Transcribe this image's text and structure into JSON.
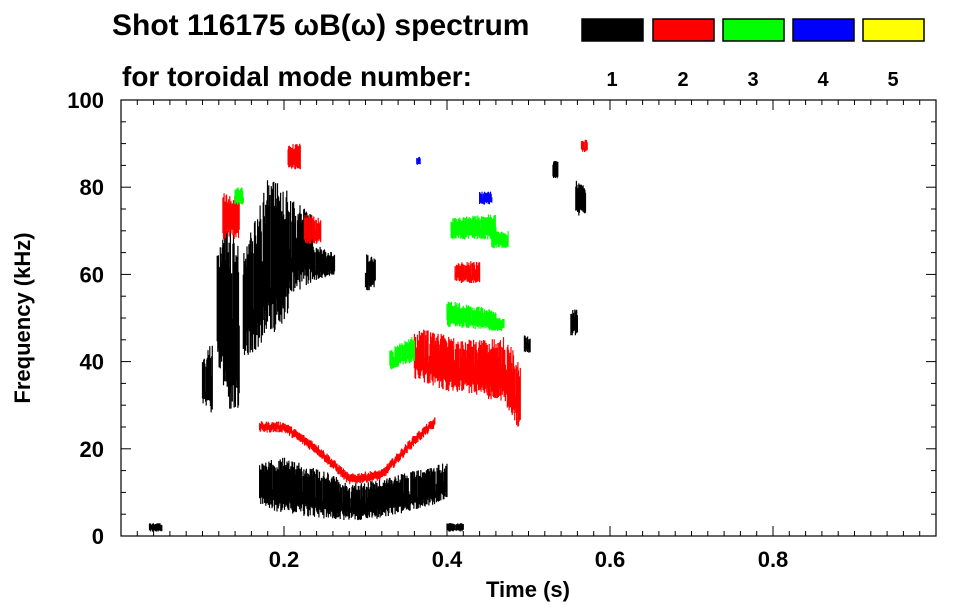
{
  "chart_data": {
    "type": "scatter",
    "title": "Shot 116175 ωB(ω) spectrum",
    "subtitle": "for toroidal mode number:",
    "xlabel": "Time (s)",
    "ylabel": "Frequency (kHz)",
    "xlim": [
      0.0,
      1.0
    ],
    "ylim": [
      0,
      100
    ],
    "x_ticks": [
      0.2,
      0.4,
      0.6,
      0.8
    ],
    "x_tick_labels": [
      "0.2",
      "0.4",
      "0.6",
      "0.8"
    ],
    "y_ticks": [
      0,
      20,
      40,
      60,
      80,
      100
    ],
    "y_tick_labels": [
      "0",
      "20",
      "40",
      "60",
      "80",
      "100"
    ],
    "legend": [
      {
        "label": "1",
        "color": "#000000"
      },
      {
        "label": "2",
        "color": "#ff0000"
      },
      {
        "label": "3",
        "color": "#00ff00"
      },
      {
        "label": "4",
        "color": "#0000ff"
      },
      {
        "label": "5",
        "color": "#ffff00"
      }
    ],
    "series": [
      {
        "name": "n=1",
        "mode": "1",
        "color": "#000000",
        "regions": [
          {
            "t": [
              0.17,
              0.4
            ],
            "f_lower": [
              [
                0.17,
                7
              ],
              [
                0.2,
                5
              ],
              [
                0.25,
                4
              ],
              [
                0.28,
                3.5
              ],
              [
                0.32,
                4
              ],
              [
                0.36,
                6
              ],
              [
                0.4,
                8
              ]
            ],
            "f_upper": [
              [
                0.17,
                17
              ],
              [
                0.2,
                18
              ],
              [
                0.25,
                15
              ],
              [
                0.28,
                12
              ],
              [
                0.32,
                13
              ],
              [
                0.36,
                15
              ],
              [
                0.4,
                17
              ]
            ]
          },
          {
            "t": [
              0.1,
              0.112
            ],
            "f_lower": [
              [
                0.1,
                30
              ],
              [
                0.112,
                28
              ]
            ],
            "f_upper": [
              [
                0.1,
                40
              ],
              [
                0.112,
                45
              ]
            ]
          },
          {
            "t": [
              0.118,
              0.145
            ],
            "f_lower": [
              [
                0.118,
                40
              ],
              [
                0.13,
                30
              ],
              [
                0.145,
                25
              ]
            ],
            "f_upper": [
              [
                0.118,
                68
              ],
              [
                0.13,
                72
              ],
              [
                0.145,
                68
              ]
            ]
          },
          {
            "t": [
              0.15,
              0.205
            ],
            "f_lower": [
              [
                0.15,
                40
              ],
              [
                0.18,
                45
              ],
              [
                0.205,
                50
              ]
            ],
            "f_upper": [
              [
                0.15,
                65
              ],
              [
                0.18,
                82
              ],
              [
                0.205,
                80
              ]
            ]
          },
          {
            "t": [
              0.205,
              0.235
            ],
            "f_lower": [
              [
                0.205,
                55
              ],
              [
                0.235,
                58
              ]
            ],
            "f_upper": [
              [
                0.205,
                78
              ],
              [
                0.235,
                75
              ]
            ]
          },
          {
            "t": [
              0.235,
              0.262
            ],
            "f_lower": [
              [
                0.235,
                58
              ],
              [
                0.262,
                60
              ]
            ],
            "f_upper": [
              [
                0.235,
                67
              ],
              [
                0.262,
                65
              ]
            ]
          },
          {
            "t": [
              0.3,
              0.312
            ],
            "f_lower": [
              [
                0.3,
                56
              ],
              [
                0.312,
                57
              ]
            ],
            "f_upper": [
              [
                0.3,
                65
              ],
              [
                0.312,
                64
              ]
            ]
          },
          {
            "t": [
              0.495,
              0.502
            ],
            "f_lower": [
              [
                0.495,
                42
              ],
              [
                0.502,
                42
              ]
            ],
            "f_upper": [
              [
                0.495,
                46
              ],
              [
                0.502,
                46
              ]
            ]
          },
          {
            "t": [
              0.53,
              0.536
            ],
            "f_lower": [
              [
                0.53,
                82
              ],
              [
                0.536,
                82
              ]
            ],
            "f_upper": [
              [
                0.53,
                86
              ],
              [
                0.536,
                86
              ]
            ]
          },
          {
            "t": [
              0.558,
              0.57
            ],
            "f_lower": [
              [
                0.558,
                73
              ],
              [
                0.57,
                74
              ]
            ],
            "f_upper": [
              [
                0.558,
                82
              ],
              [
                0.57,
                80
              ]
            ]
          },
          {
            "t": [
              0.552,
              0.56
            ],
            "f_lower": [
              [
                0.552,
                46
              ],
              [
                0.56,
                46
              ]
            ],
            "f_upper": [
              [
                0.552,
                52
              ],
              [
                0.56,
                52
              ]
            ]
          },
          {
            "t": [
              0.4,
              0.42
            ],
            "f_lower": [
              [
                0.4,
                1
              ],
              [
                0.42,
                1
              ]
            ],
            "f_upper": [
              [
                0.4,
                3
              ],
              [
                0.42,
                3
              ]
            ]
          },
          {
            "t": [
              0.035,
              0.05
            ],
            "f_lower": [
              [
                0.035,
                1
              ],
              [
                0.05,
                1
              ]
            ],
            "f_upper": [
              [
                0.035,
                3
              ],
              [
                0.05,
                3
              ]
            ]
          }
        ]
      },
      {
        "name": "n=2",
        "mode": "2",
        "color": "#ff0000",
        "regions": [
          {
            "t": [
              0.17,
              0.385
            ],
            "band": [
              [
                0.17,
                25
              ],
              [
                0.2,
                25
              ],
              [
                0.24,
                20
              ],
              [
                0.28,
                13
              ],
              [
                0.32,
                14
              ],
              [
                0.36,
                22
              ],
              [
                0.385,
                26
              ]
            ],
            "width": 1.6
          },
          {
            "t": [
              0.36,
              0.49
            ],
            "f_lower": [
              [
                0.36,
                36
              ],
              [
                0.4,
                33
              ],
              [
                0.44,
                32
              ],
              [
                0.47,
                30
              ],
              [
                0.49,
                24
              ]
            ],
            "f_upper": [
              [
                0.36,
                48
              ],
              [
                0.4,
                46
              ],
              [
                0.44,
                45
              ],
              [
                0.47,
                46
              ],
              [
                0.49,
                40
              ]
            ]
          },
          {
            "t": [
              0.125,
              0.145
            ],
            "f_lower": [
              [
                0.125,
                68
              ],
              [
                0.145,
                68
              ]
            ],
            "f_upper": [
              [
                0.125,
                79
              ],
              [
                0.145,
                78
              ]
            ]
          },
          {
            "t": [
              0.225,
              0.245
            ],
            "f_lower": [
              [
                0.225,
                67
              ],
              [
                0.245,
                67
              ]
            ],
            "f_upper": [
              [
                0.225,
                74
              ],
              [
                0.245,
                73
              ]
            ]
          },
          {
            "t": [
              0.205,
              0.22
            ],
            "f_lower": [
              [
                0.205,
                84
              ],
              [
                0.22,
                84
              ]
            ],
            "f_upper": [
              [
                0.205,
                90
              ],
              [
                0.22,
                90
              ]
            ]
          },
          {
            "t": [
              0.41,
              0.44
            ],
            "f_lower": [
              [
                0.41,
                58
              ],
              [
                0.44,
                58
              ]
            ],
            "f_upper": [
              [
                0.41,
                63
              ],
              [
                0.44,
                63
              ]
            ]
          },
          {
            "t": [
              0.565,
              0.572
            ],
            "f_lower": [
              [
                0.565,
                88
              ],
              [
                0.572,
                88
              ]
            ],
            "f_upper": [
              [
                0.565,
                91
              ],
              [
                0.572,
                91
              ]
            ]
          }
        ]
      },
      {
        "name": "n=3",
        "mode": "3",
        "color": "#00ff00",
        "regions": [
          {
            "t": [
              0.405,
              0.46
            ],
            "f_lower": [
              [
                0.405,
                68
              ],
              [
                0.46,
                68
              ]
            ],
            "f_upper": [
              [
                0.405,
                73
              ],
              [
                0.46,
                74
              ]
            ]
          },
          {
            "t": [
              0.455,
              0.475
            ],
            "f_lower": [
              [
                0.455,
                66
              ],
              [
                0.475,
                66
              ]
            ],
            "f_upper": [
              [
                0.455,
                70
              ],
              [
                0.475,
                70
              ]
            ]
          },
          {
            "t": [
              0.4,
              0.46
            ],
            "f_lower": [
              [
                0.4,
                48
              ],
              [
                0.46,
                47
              ]
            ],
            "f_upper": [
              [
                0.4,
                54
              ],
              [
                0.46,
                52
              ]
            ]
          },
          {
            "t": [
              0.33,
              0.36
            ],
            "f_lower": [
              [
                0.33,
                38
              ],
              [
                0.36,
                40
              ]
            ],
            "f_upper": [
              [
                0.33,
                43
              ],
              [
                0.36,
                46
              ]
            ]
          },
          {
            "t": [
              0.14,
              0.15
            ],
            "f_lower": [
              [
                0.14,
                76
              ],
              [
                0.15,
                76
              ]
            ],
            "f_upper": [
              [
                0.14,
                80
              ],
              [
                0.15,
                80
              ]
            ]
          },
          {
            "t": [
              0.455,
              0.47
            ],
            "f_lower": [
              [
                0.455,
                47
              ],
              [
                0.47,
                47
              ]
            ],
            "f_upper": [
              [
                0.455,
                50
              ],
              [
                0.47,
                50
              ]
            ]
          }
        ]
      },
      {
        "name": "n=4",
        "mode": "4",
        "color": "#0000ff",
        "regions": [
          {
            "t": [
              0.44,
              0.455
            ],
            "f_lower": [
              [
                0.44,
                76
              ],
              [
                0.455,
                76
              ]
            ],
            "f_upper": [
              [
                0.44,
                79
              ],
              [
                0.455,
                79
              ]
            ]
          },
          {
            "t": [
              0.363,
              0.367
            ],
            "f_lower": [
              [
                0.363,
                85
              ],
              [
                0.367,
                85
              ]
            ],
            "f_upper": [
              [
                0.363,
                87
              ],
              [
                0.367,
                87
              ]
            ]
          }
        ]
      },
      {
        "name": "n=5",
        "mode": "5",
        "color": "#ffff00",
        "regions": []
      }
    ]
  }
}
